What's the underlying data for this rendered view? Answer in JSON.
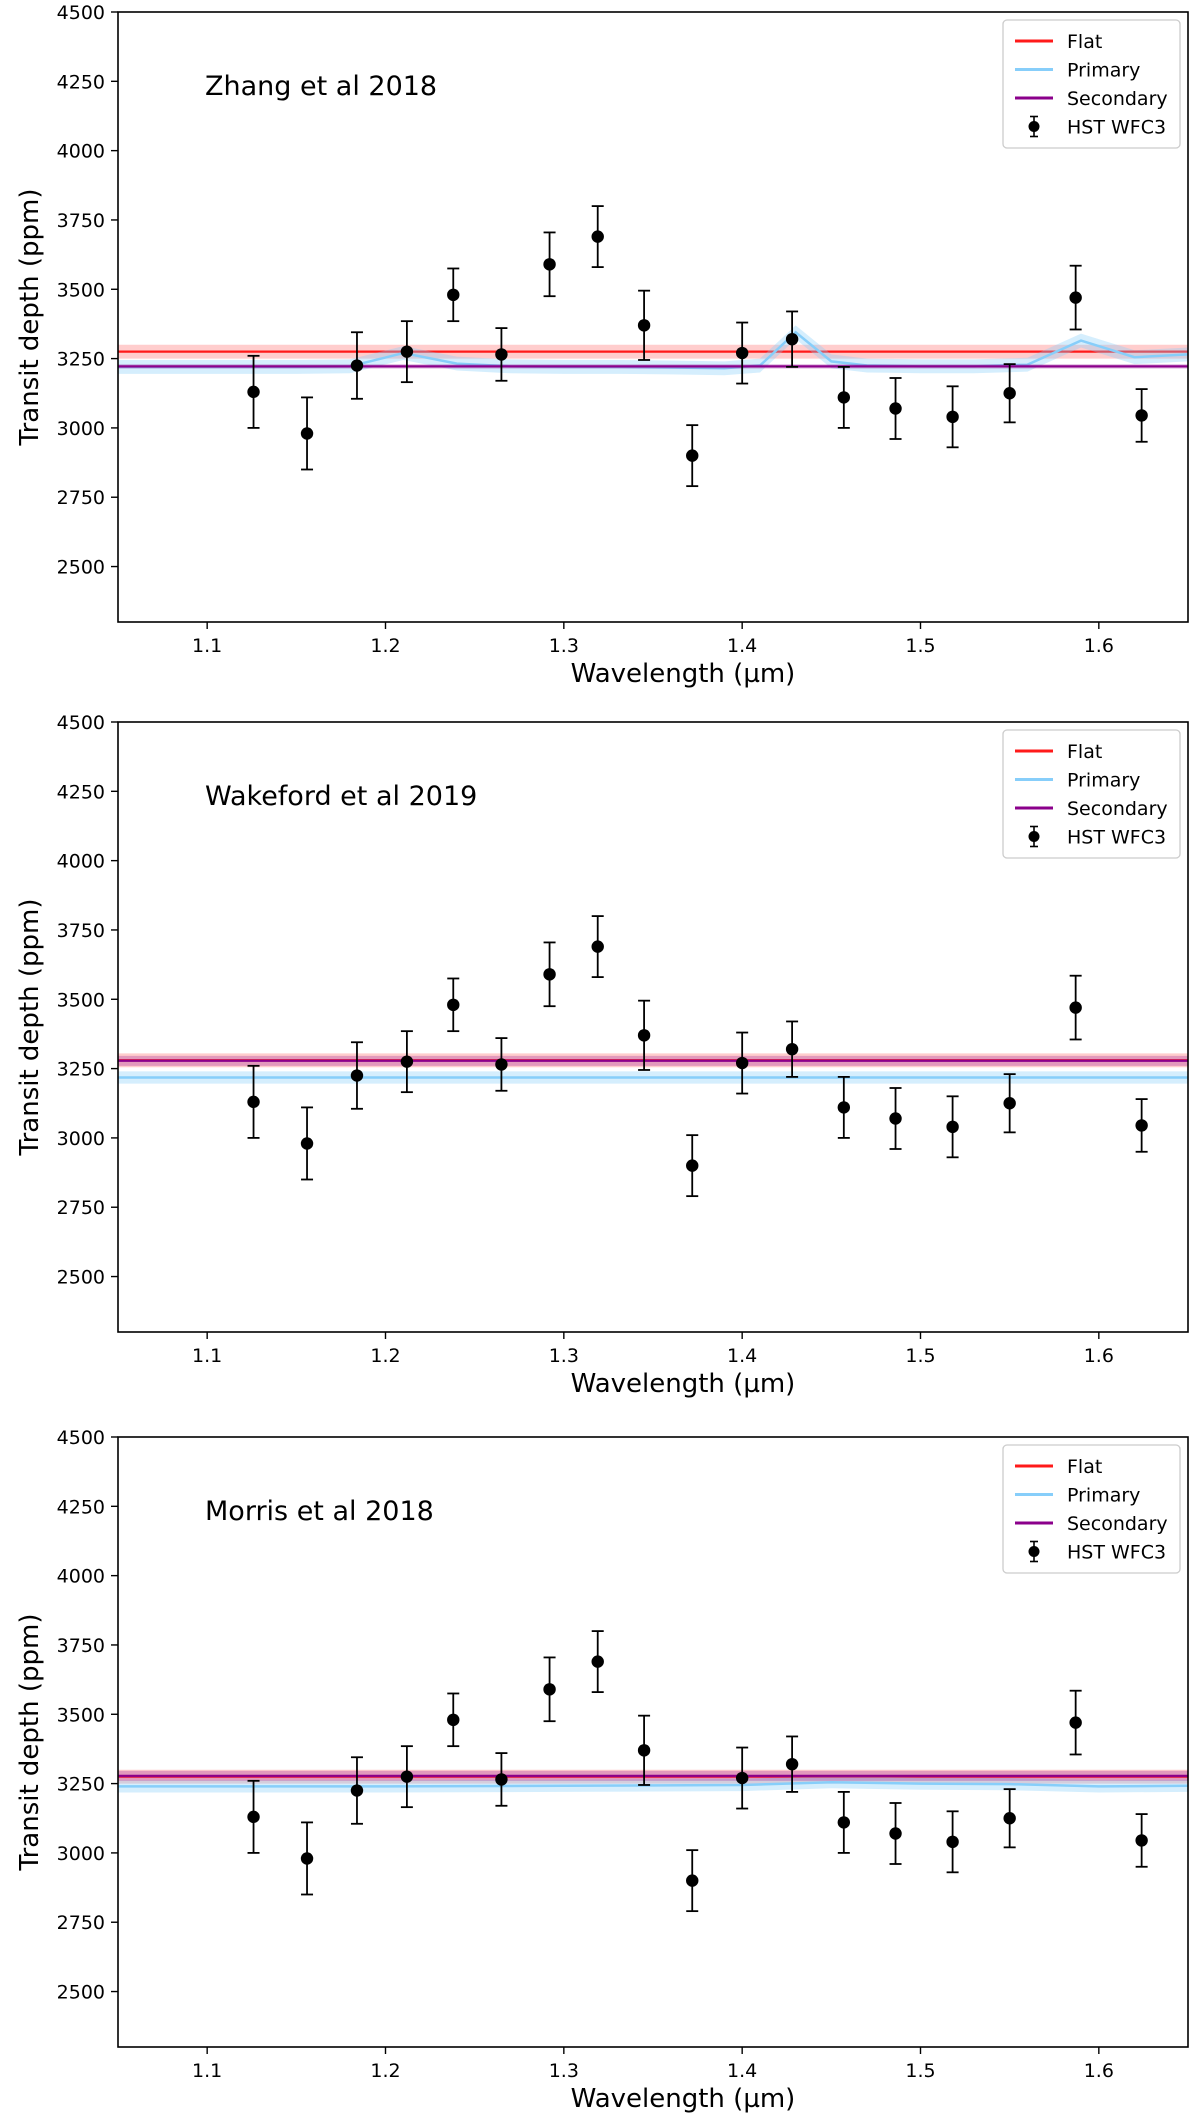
{
  "colors": {
    "flat": "#ff1a1a",
    "primary": "#87cefa",
    "secondary": "#8b008b",
    "points": "#000000"
  },
  "chart_data": [
    {
      "type": "scatter",
      "title": "Zhang et al 2018",
      "xlabel": "Wavelength (µm)",
      "ylabel": "Transit depth (ppm)",
      "xlim": [
        1.05,
        1.65
      ],
      "ylim": [
        2300,
        4500
      ],
      "xticks": [
        "1.1",
        "1.2",
        "1.3",
        "1.4",
        "1.5",
        "1.6"
      ],
      "yticks": [
        "2500",
        "2750",
        "3000",
        "3250",
        "3500",
        "3750",
        "4000",
        "4250",
        "4500"
      ],
      "legend": [
        "Flat",
        "Primary",
        "Secondary",
        "HST WFC3"
      ],
      "legend_position": "top-right",
      "points": {
        "name": "HST WFC3",
        "x": [
          1.126,
          1.156,
          1.184,
          1.212,
          1.238,
          1.265,
          1.292,
          1.319,
          1.345,
          1.372,
          1.4,
          1.428,
          1.457,
          1.486,
          1.518,
          1.55,
          1.587,
          1.624
        ],
        "y": [
          3130,
          2980,
          3225,
          3275,
          3480,
          3265,
          3590,
          3690,
          3370,
          2900,
          3270,
          3320,
          3110,
          3070,
          3040,
          3125,
          3470,
          3045
        ],
        "err": [
          130,
          130,
          120,
          110,
          95,
          95,
          115,
          110,
          125,
          110,
          110,
          100,
          110,
          110,
          110,
          105,
          115,
          95
        ]
      },
      "models": [
        {
          "name": "Flat",
          "x": [
            1.05,
            1.65
          ],
          "y": [
            3275,
            3275
          ],
          "band": 25
        },
        {
          "name": "Primary",
          "x": [
            1.05,
            1.1,
            1.15,
            1.18,
            1.21,
            1.24,
            1.27,
            1.3,
            1.33,
            1.36,
            1.39,
            1.41,
            1.43,
            1.45,
            1.47,
            1.5,
            1.53,
            1.56,
            1.59,
            1.62,
            1.65
          ],
          "y": [
            3220,
            3220,
            3220,
            3222,
            3270,
            3232,
            3222,
            3220,
            3220,
            3218,
            3215,
            3225,
            3345,
            3240,
            3225,
            3222,
            3222,
            3228,
            3315,
            3255,
            3265
          ],
          "band": 25
        },
        {
          "name": "Secondary",
          "x": [
            1.05,
            1.65
          ],
          "y": [
            3222,
            3222
          ],
          "band": 8
        }
      ]
    },
    {
      "type": "scatter",
      "title": "Wakeford et al 2019",
      "xlabel": "Wavelength (µm)",
      "ylabel": "Transit depth (ppm)",
      "xlim": [
        1.05,
        1.65
      ],
      "ylim": [
        2300,
        4500
      ],
      "xticks": [
        "1.1",
        "1.2",
        "1.3",
        "1.4",
        "1.5",
        "1.6"
      ],
      "yticks": [
        "2500",
        "2750",
        "3000",
        "3250",
        "3500",
        "3750",
        "4000",
        "4250",
        "4500"
      ],
      "legend": [
        "Flat",
        "Primary",
        "Secondary",
        "HST WFC3"
      ],
      "legend_position": "top-right",
      "points": {
        "name": "HST WFC3",
        "x": [
          1.126,
          1.156,
          1.184,
          1.212,
          1.238,
          1.265,
          1.292,
          1.319,
          1.345,
          1.372,
          1.4,
          1.428,
          1.457,
          1.486,
          1.518,
          1.55,
          1.587,
          1.624
        ],
        "y": [
          3130,
          2980,
          3225,
          3275,
          3480,
          3265,
          3590,
          3690,
          3370,
          2900,
          3270,
          3320,
          3110,
          3070,
          3040,
          3125,
          3470,
          3045
        ],
        "err": [
          130,
          130,
          120,
          110,
          95,
          95,
          115,
          110,
          125,
          110,
          110,
          100,
          110,
          110,
          110,
          105,
          115,
          95
        ]
      },
      "models": [
        {
          "name": "Flat",
          "x": [
            1.05,
            1.65
          ],
          "y": [
            3280,
            3280
          ],
          "band": 25
        },
        {
          "name": "Primary",
          "x": [
            1.05,
            1.65
          ],
          "y": [
            3218,
            3218
          ],
          "band": 22
        },
        {
          "name": "Secondary",
          "x": [
            1.05,
            1.65
          ],
          "y": [
            3278,
            3278
          ],
          "band": 18
        }
      ]
    },
    {
      "type": "scatter",
      "title": "Morris et al 2018",
      "xlabel": "Wavelength (µm)",
      "ylabel": "Transit depth (ppm)",
      "xlim": [
        1.05,
        1.65
      ],
      "ylim": [
        2300,
        4500
      ],
      "xticks": [
        "1.1",
        "1.2",
        "1.3",
        "1.4",
        "1.5",
        "1.6"
      ],
      "yticks": [
        "2500",
        "2750",
        "3000",
        "3250",
        "3500",
        "3750",
        "4000",
        "4250",
        "4500"
      ],
      "legend": [
        "Flat",
        "Primary",
        "Secondary",
        "HST WFC3"
      ],
      "legend_position": "top-right",
      "points": {
        "name": "HST WFC3",
        "x": [
          1.126,
          1.156,
          1.184,
          1.212,
          1.238,
          1.265,
          1.292,
          1.319,
          1.345,
          1.372,
          1.4,
          1.428,
          1.457,
          1.486,
          1.518,
          1.55,
          1.587,
          1.624
        ],
        "y": [
          3130,
          2980,
          3225,
          3275,
          3480,
          3265,
          3590,
          3690,
          3370,
          2900,
          3270,
          3320,
          3110,
          3070,
          3040,
          3125,
          3470,
          3045
        ],
        "err": [
          130,
          130,
          120,
          110,
          95,
          95,
          115,
          110,
          125,
          110,
          110,
          100,
          110,
          110,
          110,
          105,
          115,
          95
        ]
      },
      "models": [
        {
          "name": "Flat",
          "x": [
            1.05,
            1.65
          ],
          "y": [
            3275,
            3275
          ],
          "band": 25
        },
        {
          "name": "Primary",
          "x": [
            1.05,
            1.2,
            1.3,
            1.4,
            1.45,
            1.5,
            1.55,
            1.6,
            1.65
          ],
          "y": [
            3240,
            3240,
            3242,
            3245,
            3255,
            3250,
            3248,
            3240,
            3242
          ],
          "band": 22
        },
        {
          "name": "Secondary",
          "x": [
            1.05,
            1.65
          ],
          "y": [
            3278,
            3278
          ],
          "band": 18
        }
      ]
    }
  ]
}
